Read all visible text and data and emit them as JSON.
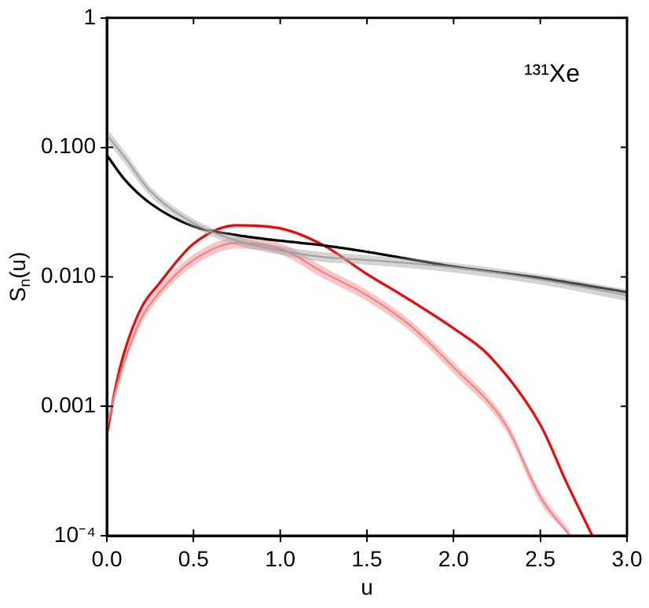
{
  "chart_data": {
    "type": "line",
    "xlabel": "u",
    "ylabel": "S$_{n}$(u)",
    "annotations": [
      "¹³¹Xe"
    ],
    "xlim": [
      0,
      3
    ],
    "xticks": [
      {
        "value": 0,
        "label": "0.0"
      },
      {
        "value": 0.5,
        "label": "0.5"
      },
      {
        "value": 1,
        "label": "1.0"
      },
      {
        "value": 1.5,
        "label": "1.5"
      },
      {
        "value": 2,
        "label": "2.0"
      },
      {
        "value": 2.5,
        "label": "2.5"
      },
      {
        "value": 3,
        "label": "3.0"
      }
    ],
    "ylim": [
      0.0001,
      1
    ],
    "yticks": [
      {
        "value": 0.0001,
        "label": "10⁻⁴"
      },
      {
        "value": 0.001,
        "label": "0.001"
      },
      {
        "value": 0.01,
        "label": "0.010"
      },
      {
        "value": 0.1,
        "label": "0.100"
      },
      {
        "value": 1,
        "label": "1"
      }
    ],
    "log": "y",
    "grid": false,
    "legend": false,
    "marker": "none",
    "line_style": "solid",
    "series": [
      {
        "color": "#a0a0a0",
        "x": [
          0,
          0.1,
          0.25,
          0.5,
          0.75,
          1,
          1.25,
          1.5,
          2,
          2.5,
          3
        ],
        "values": [
          0.125,
          0.085,
          0.046,
          0.026,
          0.019,
          0.016,
          0.0142,
          0.0135,
          0.0118,
          0.0095,
          0.0072
        ],
        "lower": [
          0.112,
          0.076,
          0.042,
          0.024,
          0.0175,
          0.0148,
          0.013,
          0.0124,
          0.0108,
          0.0087,
          0.0065
        ],
        "upper": [
          0.14,
          0.094,
          0.05,
          0.028,
          0.0205,
          0.0173,
          0.0155,
          0.0147,
          0.0128,
          0.0104,
          0.008
        ]
      },
      {
        "color": "#000000",
        "x": [
          0,
          0.1,
          0.25,
          0.5,
          0.75,
          1,
          1.25,
          1.5,
          2,
          2.5,
          3
        ],
        "values": [
          0.087,
          0.057,
          0.037,
          0.0245,
          0.021,
          0.019,
          0.0175,
          0.0156,
          0.012,
          0.0098,
          0.0076
        ]
      },
      {
        "color": "#f08080",
        "x": [
          0,
          0.05,
          0.1,
          0.2,
          0.3,
          0.5,
          0.75,
          1,
          1.25,
          1.5,
          1.75,
          2,
          2.3,
          2.5,
          2.67
        ],
        "values": [
          0.0007,
          0.0013,
          0.0022,
          0.0048,
          0.0075,
          0.0135,
          0.0183,
          0.0165,
          0.0108,
          0.0072,
          0.0042,
          0.002,
          0.00072,
          0.0002,
          0.0001
        ],
        "lower": [
          0.00063,
          0.00117,
          0.002,
          0.0043,
          0.0068,
          0.0122,
          0.0165,
          0.0149,
          0.0097,
          0.0065,
          0.0038,
          0.0018,
          0.00065,
          0.00018,
          0.0001
        ],
        "upper": [
          0.00077,
          0.00143,
          0.0024,
          0.0053,
          0.0083,
          0.0149,
          0.0201,
          0.0182,
          0.0119,
          0.0079,
          0.0046,
          0.0022,
          0.00079,
          0.00022,
          0.00011
        ]
      },
      {
        "color": "#ff0000",
        "x": [
          0,
          0.05,
          0.1,
          0.2,
          0.3,
          0.5,
          0.75,
          1,
          1.25,
          1.5,
          1.75,
          2,
          2.2,
          2.5,
          2.65,
          2.8
        ],
        "values": [
          0.0006,
          0.0014,
          0.0026,
          0.0058,
          0.0088,
          0.018,
          0.025,
          0.0237,
          0.0175,
          0.0105,
          0.0066,
          0.004,
          0.0025,
          0.00072,
          0.00026,
          0.0001
        ]
      }
    ]
  }
}
